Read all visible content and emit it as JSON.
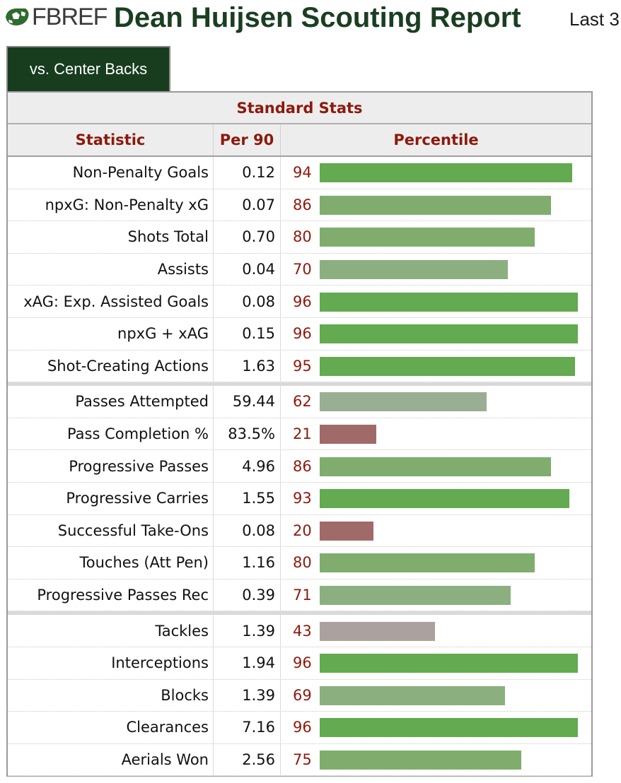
{
  "header": {
    "logo_text": "FBREF",
    "title": "Dean Huijsen Scouting Report",
    "period": "Last 3"
  },
  "tabs": [
    {
      "label": "vs. Center Backs",
      "active": true
    }
  ],
  "table": {
    "section_title": "Standard Stats",
    "columns": {
      "statistic": "Statistic",
      "per90": "Per 90",
      "percentile": "Percentile"
    },
    "groups": [
      [
        {
          "stat": "Non-Penalty Goals",
          "per90": "0.12",
          "percentile": 94
        },
        {
          "stat": "npxG: Non-Penalty xG",
          "per90": "0.07",
          "percentile": 86
        },
        {
          "stat": "Shots Total",
          "per90": "0.70",
          "percentile": 80
        },
        {
          "stat": "Assists",
          "per90": "0.04",
          "percentile": 70
        },
        {
          "stat": "xAG: Exp. Assisted Goals",
          "per90": "0.08",
          "percentile": 96
        },
        {
          "stat": "npxG + xAG",
          "per90": "0.15",
          "percentile": 96
        },
        {
          "stat": "Shot-Creating Actions",
          "per90": "1.63",
          "percentile": 95
        }
      ],
      [
        {
          "stat": "Passes Attempted",
          "per90": "59.44",
          "percentile": 62
        },
        {
          "stat": "Pass Completion %",
          "per90": "83.5%",
          "percentile": 21
        },
        {
          "stat": "Progressive Passes",
          "per90": "4.96",
          "percentile": 86
        },
        {
          "stat": "Progressive Carries",
          "per90": "1.55",
          "percentile": 93
        },
        {
          "stat": "Successful Take-Ons",
          "per90": "0.08",
          "percentile": 20
        },
        {
          "stat": "Touches (Att Pen)",
          "per90": "1.16",
          "percentile": 80
        },
        {
          "stat": "Progressive Passes Rec",
          "per90": "0.39",
          "percentile": 71
        }
      ],
      [
        {
          "stat": "Tackles",
          "per90": "1.39",
          "percentile": 43
        },
        {
          "stat": "Interceptions",
          "per90": "1.94",
          "percentile": 96
        },
        {
          "stat": "Blocks",
          "per90": "1.39",
          "percentile": 69
        },
        {
          "stat": "Clearances",
          "per90": "7.16",
          "percentile": 96
        },
        {
          "stat": "Aerials Won",
          "per90": "2.56",
          "percentile": 75
        }
      ]
    ]
  },
  "colors": {
    "title_green": "#1a3e21",
    "tab_bg": "#173d1e",
    "header_red": "#8b1a0e",
    "bar_high": "#64aa50",
    "bar_mid_high": "#80ad6e",
    "bar_mid": "#8caf80",
    "bar_neutral": "#9aae93",
    "bar_lowmid": "#aba19e",
    "bar_low": "#a06a68"
  }
}
